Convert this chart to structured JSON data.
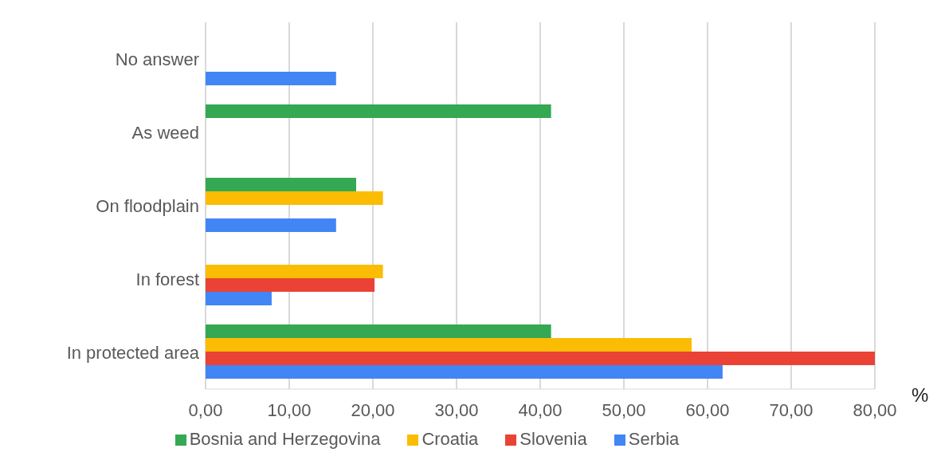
{
  "chart_data": {
    "type": "bar",
    "orientation": "horizontal",
    "xlabel": "%",
    "categories": [
      "No answer",
      "As weed",
      "On floodplain",
      "In forest",
      "In protected area"
    ],
    "series": [
      {
        "name": "Bosnia and Herzegovina",
        "color": "#34a853",
        "values": [
          0,
          41.3,
          18.0,
          0,
          41.3
        ]
      },
      {
        "name": "Croatia",
        "color": "#fbbc04",
        "values": [
          0,
          0,
          21.2,
          21.2,
          58.1
        ]
      },
      {
        "name": "Slovenia",
        "color": "#ea4335",
        "values": [
          0,
          0,
          0,
          20.2,
          80.0
        ]
      },
      {
        "name": "Serbia",
        "color": "#4285f4",
        "values": [
          15.6,
          0,
          15.6,
          7.9,
          61.8
        ]
      }
    ],
    "xlim": [
      0,
      80
    ],
    "xticks": [
      {
        "value": 0,
        "label": "0,00"
      },
      {
        "value": 10,
        "label": "10,00"
      },
      {
        "value": 20,
        "label": "20,00"
      },
      {
        "value": 30,
        "label": "30,00"
      },
      {
        "value": 40,
        "label": "40,00"
      },
      {
        "value": 50,
        "label": "50,00"
      },
      {
        "value": 60,
        "label": "60,00"
      },
      {
        "value": 70,
        "label": "70,00"
      },
      {
        "value": 80,
        "label": "80,00"
      }
    ],
    "grid": "x",
    "legend": "bottom"
  }
}
